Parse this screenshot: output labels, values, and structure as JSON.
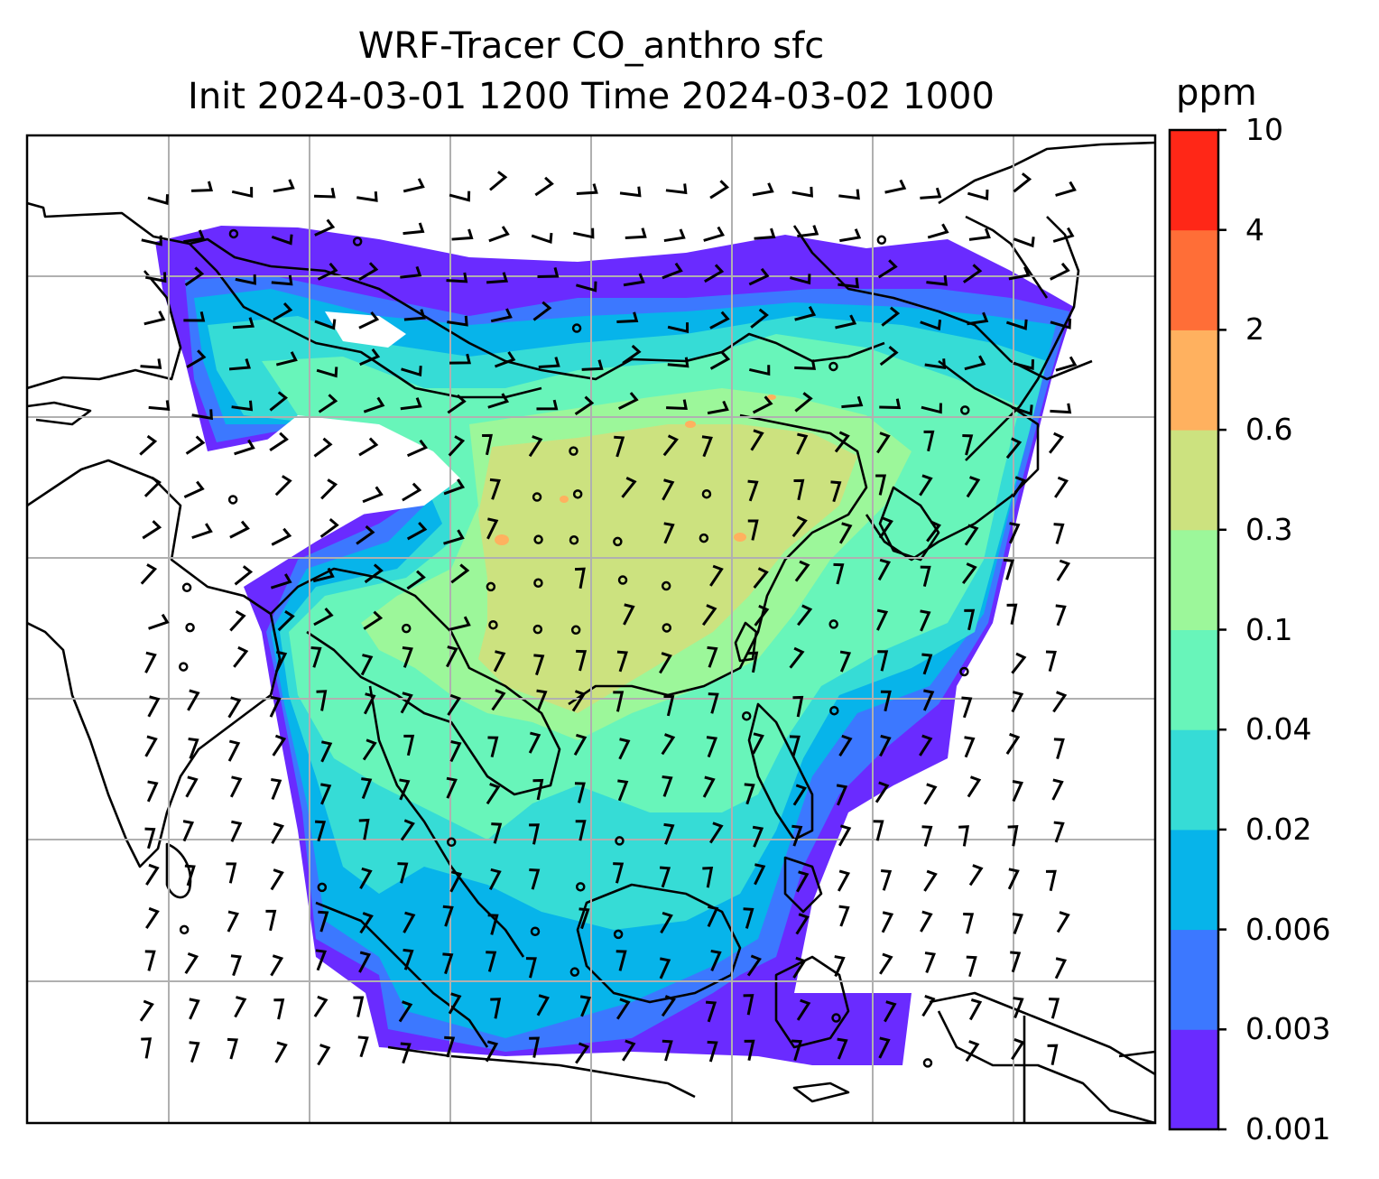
{
  "title": {
    "line1": "WRF-Tracer CO_anthro sfc",
    "line2": "Init 2024-03-01 1200 Time 2024-03-02 1000"
  },
  "colorbar": {
    "unit": "ppm",
    "levels": [
      "0.001",
      "0.003",
      "0.006",
      "0.02",
      "0.04",
      "0.1",
      "0.3",
      "0.6",
      "2",
      "4",
      "10"
    ],
    "colors": [
      "#6a2bff",
      "#3c78ff",
      "#07b4ea",
      "#36dcd6",
      "#68f5ba",
      "#9cf79a",
      "#cce27f",
      "#ffb15f",
      "#ff6e37",
      "#ff2717"
    ]
  },
  "map": {
    "land_border_color": "#000000",
    "gridline_color": "#b0b0b0",
    "wind_barb_color": "#000000"
  }
}
